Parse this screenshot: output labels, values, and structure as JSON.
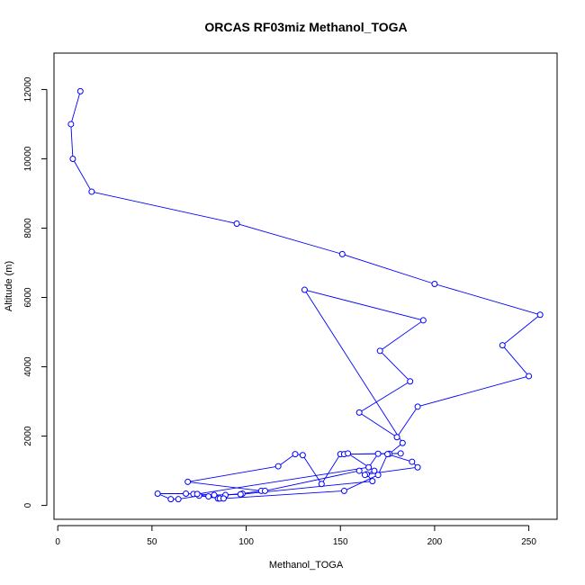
{
  "chart_data": {
    "type": "line",
    "title": "ORCAS RF03miz Methanol_TOGA",
    "xlabel": "Methanol_TOGA",
    "ylabel": "Altitude (m)",
    "xlim": [
      -2,
      265
    ],
    "ylim": [
      -400,
      13050
    ],
    "x_ticks": [
      0,
      50,
      100,
      150,
      200,
      250
    ],
    "y_ticks": [
      0,
      2000,
      4000,
      6000,
      8000,
      10000,
      12000
    ],
    "grid": false,
    "legend": "none",
    "series": [
      {
        "color": "#0000ff",
        "marker": "open-circle",
        "points": [
          [
            12,
            11950
          ],
          [
            7,
            11000
          ],
          [
            8,
            10000
          ],
          [
            18,
            9050
          ],
          [
            95,
            8130
          ],
          [
            151,
            7250
          ],
          [
            200,
            6390
          ],
          [
            256,
            5500
          ],
          [
            236,
            4620
          ],
          [
            250,
            3730
          ],
          [
            191,
            2850
          ],
          [
            180,
            1970
          ],
          [
            160,
            2680
          ],
          [
            187,
            3580
          ],
          [
            171,
            4460
          ],
          [
            194,
            5340
          ],
          [
            131,
            6220
          ],
          [
            183,
            1800
          ],
          [
            176,
            1490
          ],
          [
            150,
            1480
          ],
          [
            140,
            620
          ],
          [
            130,
            1450
          ],
          [
            126,
            1480
          ],
          [
            117,
            1130
          ],
          [
            69,
            680
          ],
          [
            108,
            420
          ],
          [
            98,
            340
          ],
          [
            89,
            300
          ],
          [
            85,
            200
          ],
          [
            80,
            260
          ],
          [
            72,
            330
          ],
          [
            68,
            340
          ],
          [
            53,
            340
          ],
          [
            60,
            180
          ],
          [
            64,
            180
          ],
          [
            75,
            280
          ],
          [
            86,
            200
          ],
          [
            88,
            200
          ],
          [
            152,
            420
          ],
          [
            170,
            880
          ],
          [
            175,
            1480
          ],
          [
            188,
            1260
          ],
          [
            191,
            1100
          ],
          [
            164,
            900
          ],
          [
            167,
            700
          ],
          [
            97,
            320
          ],
          [
            83,
            300
          ],
          [
            74,
            330
          ],
          [
            165,
            1100
          ],
          [
            170,
            1490
          ],
          [
            182,
            1500
          ],
          [
            152,
            1480
          ],
          [
            154,
            1500
          ],
          [
            168,
            1000
          ],
          [
            163,
            880
          ],
          [
            160,
            1000
          ],
          [
            110,
            420
          ]
        ]
      }
    ]
  }
}
